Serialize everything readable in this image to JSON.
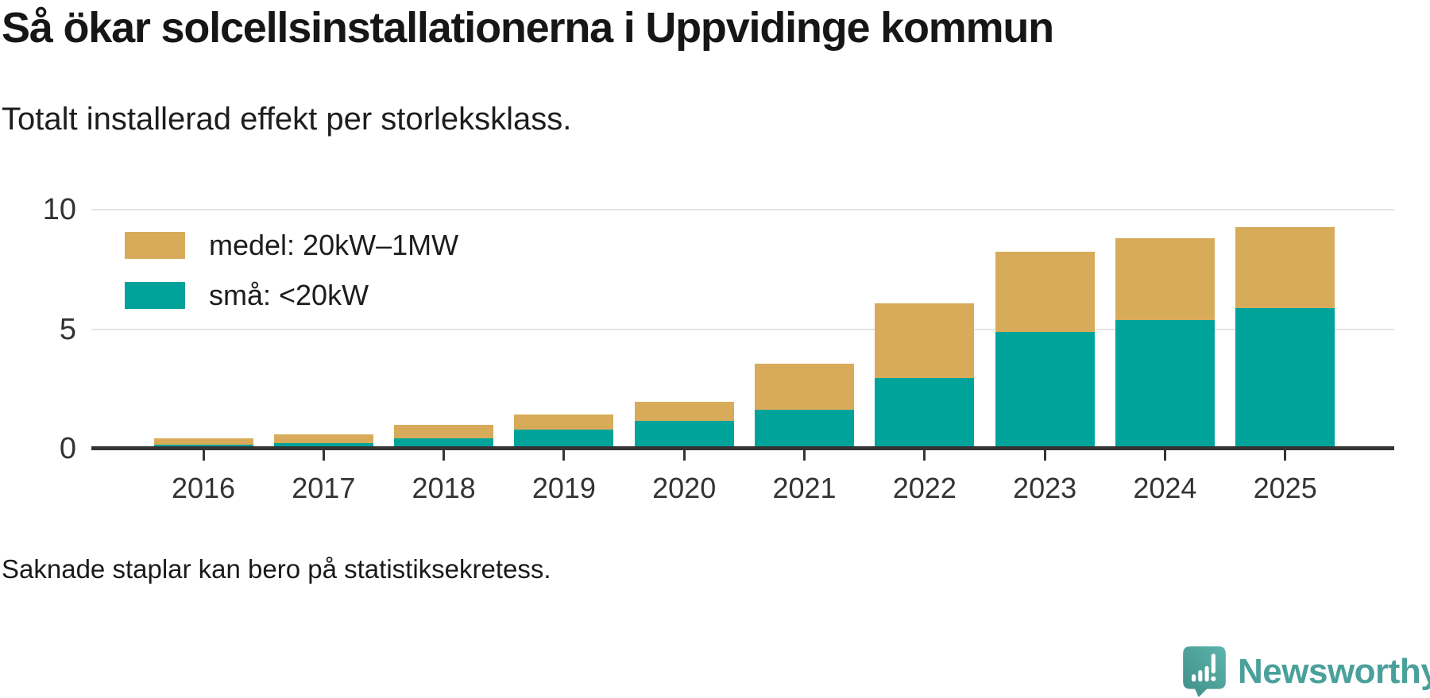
{
  "header": {
    "title": "Så ökar solcellsinstallationerna i Uppvidinge kommun",
    "subtitle": "Totalt installerad effekt per storleksklass."
  },
  "legend": [
    {
      "label": "medel: 20kW–1MW",
      "color": "#D8AB5B"
    },
    {
      "label": "små: <20kW",
      "color": "#00A39A"
    }
  ],
  "chart_data": {
    "type": "bar",
    "stacked": true,
    "title": "Så ökar solcellsinstallationerna i Uppvidinge kommun",
    "subtitle": "Totalt installerad effekt per storleksklass.",
    "categories": [
      "2016",
      "2017",
      "2018",
      "2019",
      "2020",
      "2021",
      "2022",
      "2023",
      "2024",
      "2025"
    ],
    "series": [
      {
        "name": "små: <20kW",
        "color": "#00A39A",
        "values": [
          0.17,
          0.23,
          0.42,
          0.79,
          1.15,
          1.63,
          2.96,
          4.9,
          5.37,
          5.88
        ]
      },
      {
        "name": "medel: 20kW–1MW",
        "color": "#D8AB5B",
        "values": [
          0.26,
          0.36,
          0.57,
          0.64,
          0.81,
          1.91,
          3.11,
          3.35,
          3.43,
          3.4
        ]
      }
    ],
    "xlabel": "",
    "ylabel": "",
    "ylim": [
      0,
      10
    ],
    "yticks": [
      0,
      5,
      10
    ],
    "grid": "horizontal",
    "legend_position": "top-left"
  },
  "footer": {
    "note": "Saknade staplar kan bero på statistiksekretess."
  },
  "branding": {
    "logo_text": "Newsworthy",
    "logo_color": "#4AA09A",
    "icon": "newsworthy-speech-bubble-chart-icon"
  },
  "colors": {
    "medel": "#D8AB5B",
    "sma": "#00A39A",
    "axis": "#343434",
    "gridline": "#E4E4E4",
    "text": "#1a1a1a"
  }
}
